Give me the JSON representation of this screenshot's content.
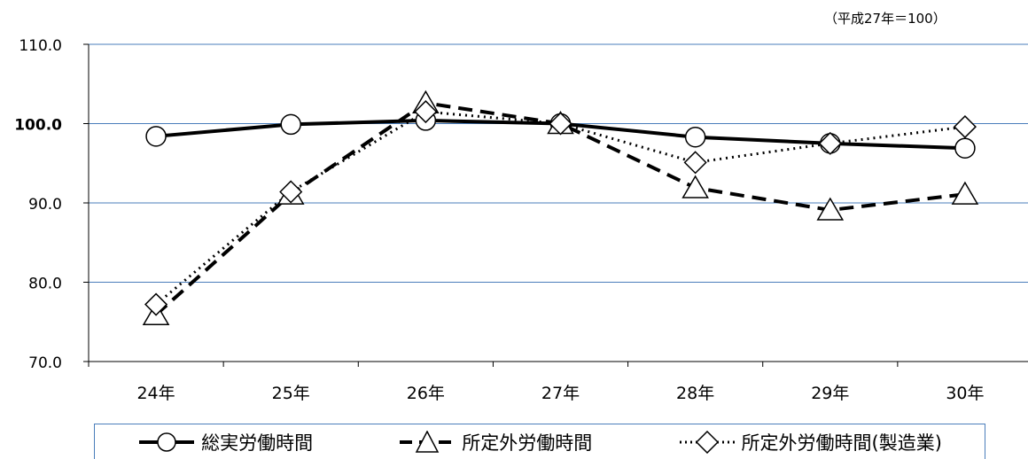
{
  "note": "（平成27年＝100）",
  "chart_data": {
    "type": "line",
    "title": "",
    "xlabel": "",
    "ylabel": "",
    "categories": [
      "24年",
      "25年",
      "26年",
      "27年",
      "28年",
      "29年",
      "30年"
    ],
    "ylim": [
      70,
      110
    ],
    "yticks": [
      70,
      80,
      90,
      100,
      110
    ],
    "ytick_labels": [
      "70.0",
      "80.0",
      "90.0",
      "100.0",
      "110.0"
    ],
    "emphasized_ytick": "100.0",
    "grid": true,
    "legend_position": "bottom",
    "series": [
      {
        "name": "総実労働時間",
        "values": [
          98.4,
          99.9,
          100.4,
          100.0,
          98.3,
          97.5,
          96.9
        ],
        "line": "solid",
        "marker": "circle",
        "color": "#000000"
      },
      {
        "name": "所定外労働時間",
        "values": [
          75.9,
          91.1,
          102.6,
          100.0,
          91.9,
          89.1,
          91.1
        ],
        "line": "dashed",
        "marker": "triangle",
        "color": "#000000"
      },
      {
        "name": "所定外労働時間(製造業)",
        "values": [
          77.2,
          91.4,
          101.5,
          100.0,
          95.1,
          97.5,
          99.6
        ],
        "line": "dotted",
        "marker": "diamond",
        "color": "#000000"
      }
    ],
    "gridline_color": "#4a7ebb"
  }
}
